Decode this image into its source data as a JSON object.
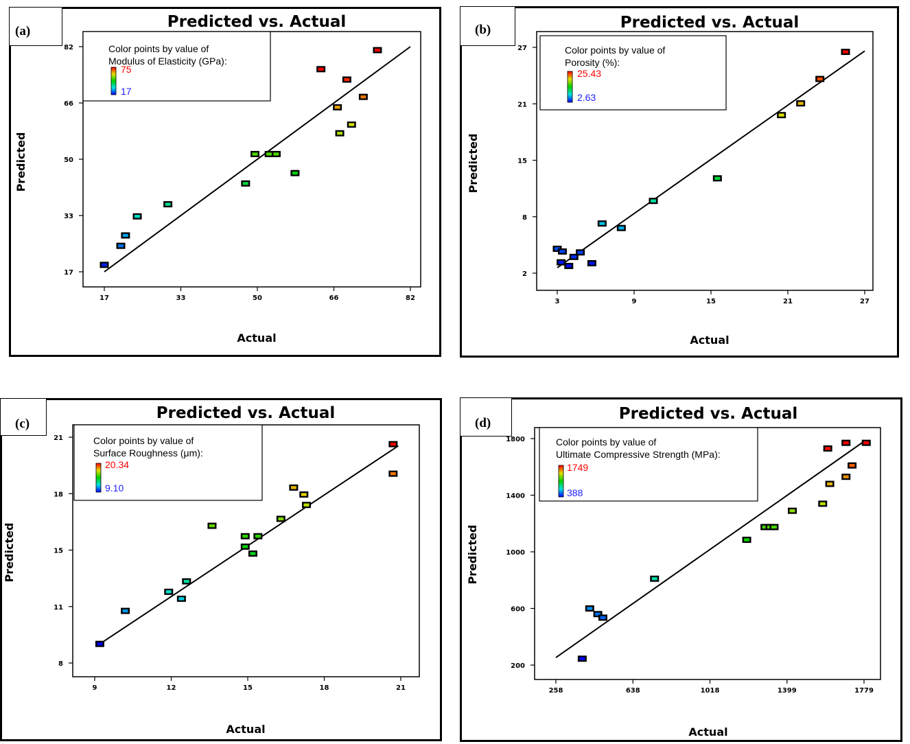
{
  "chart_data": [
    {
      "type": "scatter",
      "panel_label": "(a)",
      "title": "Predicted vs. Actual",
      "xlabel": "Actual",
      "ylabel": "Predicted",
      "xlim": [
        17,
        82
      ],
      "ylim": [
        17,
        82
      ],
      "xticks": [
        "17",
        "33",
        "50",
        "66",
        "82"
      ],
      "yticks": [
        "17",
        "33",
        "50",
        "66",
        "82"
      ],
      "legend": {
        "line1": "Color points by value of",
        "line2": "Modulus of Elasticity (GPa):",
        "max": "75",
        "min": "17"
      },
      "color_range": [
        17,
        75
      ],
      "fit_line": [
        [
          17,
          17
        ],
        [
          82,
          82
        ]
      ],
      "points": [
        {
          "x": 17,
          "y": 19
        },
        {
          "x": 20.5,
          "y": 24.5
        },
        {
          "x": 21.5,
          "y": 27.5
        },
        {
          "x": 24,
          "y": 33
        },
        {
          "x": 30.5,
          "y": 36.5
        },
        {
          "x": 47,
          "y": 42.5
        },
        {
          "x": 49,
          "y": 51
        },
        {
          "x": 52,
          "y": 51
        },
        {
          "x": 53.5,
          "y": 51
        },
        {
          "x": 57.5,
          "y": 45.5
        },
        {
          "x": 63,
          "y": 75.5
        },
        {
          "x": 66.5,
          "y": 64.5
        },
        {
          "x": 67,
          "y": 57
        },
        {
          "x": 68.5,
          "y": 72.5
        },
        {
          "x": 69.5,
          "y": 59.5
        },
        {
          "x": 72,
          "y": 67.5
        },
        {
          "x": 75,
          "y": 81
        }
      ]
    },
    {
      "type": "scatter",
      "panel_label": "(b)",
      "title": "Predicted vs. Actual",
      "xlabel": "Actual",
      "ylabel": "Predicted",
      "xlim": [
        3,
        27
      ],
      "ylim": [
        2,
        27
      ],
      "xticks": [
        "3",
        "9",
        "15",
        "21",
        "27"
      ],
      "yticks": [
        "2",
        "8",
        "15",
        "21",
        "27"
      ],
      "legend": {
        "line1": "Color points by value of",
        "line2": "Porosity (%):",
        "max": "25.43",
        "min": "2.63"
      },
      "color_range": [
        2.63,
        25.43
      ],
      "fit_line": [
        [
          3,
          2.6
        ],
        [
          27,
          26.6
        ]
      ],
      "points": [
        {
          "x": 3,
          "y": 4.7
        },
        {
          "x": 3.4,
          "y": 4.4
        },
        {
          "x": 3.3,
          "y": 3.2
        },
        {
          "x": 3.9,
          "y": 2.8
        },
        {
          "x": 4.3,
          "y": 3.8
        },
        {
          "x": 4.8,
          "y": 4.3
        },
        {
          "x": 5.7,
          "y": 3.1
        },
        {
          "x": 6.5,
          "y": 7.5
        },
        {
          "x": 8,
          "y": 7
        },
        {
          "x": 10.5,
          "y": 10
        },
        {
          "x": 15.5,
          "y": 12.5
        },
        {
          "x": 20.5,
          "y": 19.5
        },
        {
          "x": 22,
          "y": 20.8
        },
        {
          "x": 23.5,
          "y": 23.5
        },
        {
          "x": 25.5,
          "y": 26.5
        }
      ]
    },
    {
      "type": "scatter",
      "panel_label": "(c)",
      "title": "Predicted vs. Actual",
      "xlabel": "Actual",
      "ylabel": "Predicted",
      "xlim": [
        9,
        21
      ],
      "ylim": [
        8,
        21
      ],
      "xticks": [
        "9",
        "12",
        "15",
        "18",
        "21"
      ],
      "yticks": [
        "8",
        "11",
        "15",
        "18",
        "21"
      ],
      "legend": {
        "line1": "Color points by value of",
        "line2": "Surface Roughness (μm):",
        "max": "20.34",
        "min": "9.10"
      },
      "color_range": [
        9.1,
        20.34
      ],
      "fit_line": [
        [
          9.1,
          9.0
        ],
        [
          20.9,
          20.5
        ]
      ],
      "points": [
        {
          "x": 9.2,
          "y": 9.1
        },
        {
          "x": 10.2,
          "y": 11
        },
        {
          "x": 11.9,
          "y": 12.1
        },
        {
          "x": 12.4,
          "y": 11.7
        },
        {
          "x": 12.6,
          "y": 12.7
        },
        {
          "x": 13.6,
          "y": 15.9
        },
        {
          "x": 14.9,
          "y": 15.3
        },
        {
          "x": 14.9,
          "y": 14.7
        },
        {
          "x": 15.2,
          "y": 14.3
        },
        {
          "x": 15.4,
          "y": 15.3
        },
        {
          "x": 16.3,
          "y": 16.3
        },
        {
          "x": 16.8,
          "y": 18.1
        },
        {
          "x": 17.2,
          "y": 17.7
        },
        {
          "x": 17.3,
          "y": 17.1
        },
        {
          "x": 20.7,
          "y": 20.6
        },
        {
          "x": 20.7,
          "y": 18.9
        }
      ]
    },
    {
      "type": "scatter",
      "panel_label": "(d)",
      "title": "Predicted vs. Actual",
      "xlabel": "Actual",
      "ylabel": "Predicted",
      "xlim": [
        258,
        1779
      ],
      "ylim": [
        200,
        1800
      ],
      "xticks": [
        "258",
        "638",
        "1018",
        "1399",
        "1779"
      ],
      "yticks": [
        "200",
        "600",
        "1000",
        "1400",
        "1800"
      ],
      "legend": {
        "line1": "Color points by value of",
        "line2": "Ultimate Compressive Strength (MPa):",
        "max": "1749",
        "min": "388"
      },
      "color_range": [
        388,
        1749
      ],
      "fit_line": [
        [
          258,
          253
        ],
        [
          1779,
          1780
        ]
      ],
      "points": [
        {
          "x": 388,
          "y": 245
        },
        {
          "x": 425,
          "y": 600
        },
        {
          "x": 465,
          "y": 560
        },
        {
          "x": 490,
          "y": 535
        },
        {
          "x": 745,
          "y": 810
        },
        {
          "x": 1200,
          "y": 1085
        },
        {
          "x": 1290,
          "y": 1175
        },
        {
          "x": 1315,
          "y": 1175
        },
        {
          "x": 1335,
          "y": 1175
        },
        {
          "x": 1425,
          "y": 1290
        },
        {
          "x": 1575,
          "y": 1340
        },
        {
          "x": 1600,
          "y": 1730
        },
        {
          "x": 1610,
          "y": 1480
        },
        {
          "x": 1690,
          "y": 1770
        },
        {
          "x": 1690,
          "y": 1530
        },
        {
          "x": 1720,
          "y": 1610
        },
        {
          "x": 1790,
          "y": 1770
        }
      ]
    }
  ]
}
